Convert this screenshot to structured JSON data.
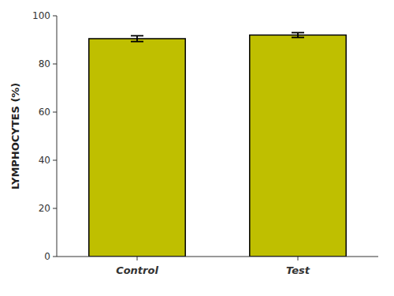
{
  "chart_data": {
    "type": "bar",
    "categories": [
      "Control",
      "Test"
    ],
    "values": [
      90.5,
      92.0
    ],
    "errors": [
      1.2,
      1.0
    ],
    "color": "#BFBF00",
    "ylabel": "LYMPHOCYTES (%)",
    "ylim": [
      0,
      100
    ],
    "yticks": [
      0,
      20,
      40,
      60,
      80,
      100
    ],
    "grid": false
  }
}
